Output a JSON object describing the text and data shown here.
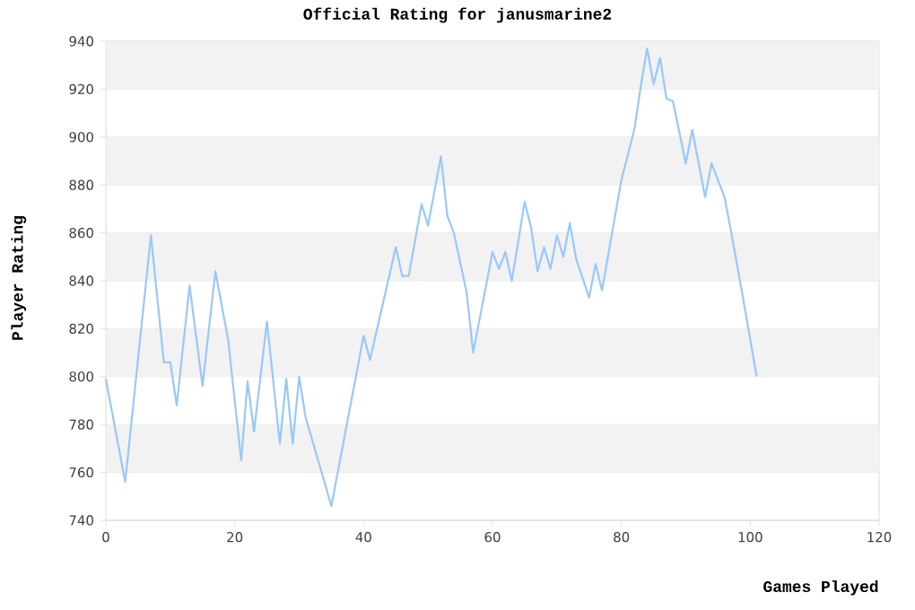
{
  "chart_data": {
    "type": "line",
    "title": "Official Rating for janusmarine2",
    "xlabel": "Games Played",
    "ylabel": "Player Rating",
    "series": [
      {
        "color": "#99c8f8",
        "x": [
          0,
          3,
          7,
          9,
          10,
          11,
          13,
          15,
          17,
          19,
          21,
          22,
          23,
          25,
          27,
          28,
          29,
          30,
          31,
          35,
          40,
          41,
          45,
          46,
          47,
          49,
          50,
          52,
          53,
          54,
          56,
          57,
          60,
          61,
          62,
          63,
          65,
          66,
          67,
          68,
          69,
          70,
          71,
          72,
          73,
          75,
          76,
          77,
          80,
          82,
          83,
          84,
          85,
          86,
          87,
          88,
          90,
          91,
          93,
          94,
          96,
          97,
          99,
          101
        ],
        "values": [
          799,
          756,
          859,
          806,
          806,
          788,
          838,
          796,
          844,
          815,
          765,
          798,
          777,
          823,
          772,
          799,
          772,
          800,
          783,
          746,
          817,
          807,
          854,
          842,
          842,
          872,
          863,
          892,
          867,
          860,
          835,
          810,
          852,
          845,
          852,
          840,
          873,
          862,
          844,
          854,
          845,
          859,
          850,
          864,
          849,
          833,
          847,
          836,
          882,
          903,
          921,
          937,
          922,
          933,
          916,
          915,
          889,
          903,
          875,
          889,
          875,
          861,
          831,
          800
        ]
      }
    ],
    "xlim": [
      0,
      120
    ],
    "xticks": [
      0,
      20,
      40,
      60,
      80,
      100,
      120
    ],
    "ylim": [
      740,
      940
    ],
    "yticks": [
      740,
      760,
      780,
      800,
      820,
      840,
      860,
      880,
      900,
      920,
      940
    ],
    "grid": "y",
    "marker": "none",
    "line_style": "solid"
  }
}
